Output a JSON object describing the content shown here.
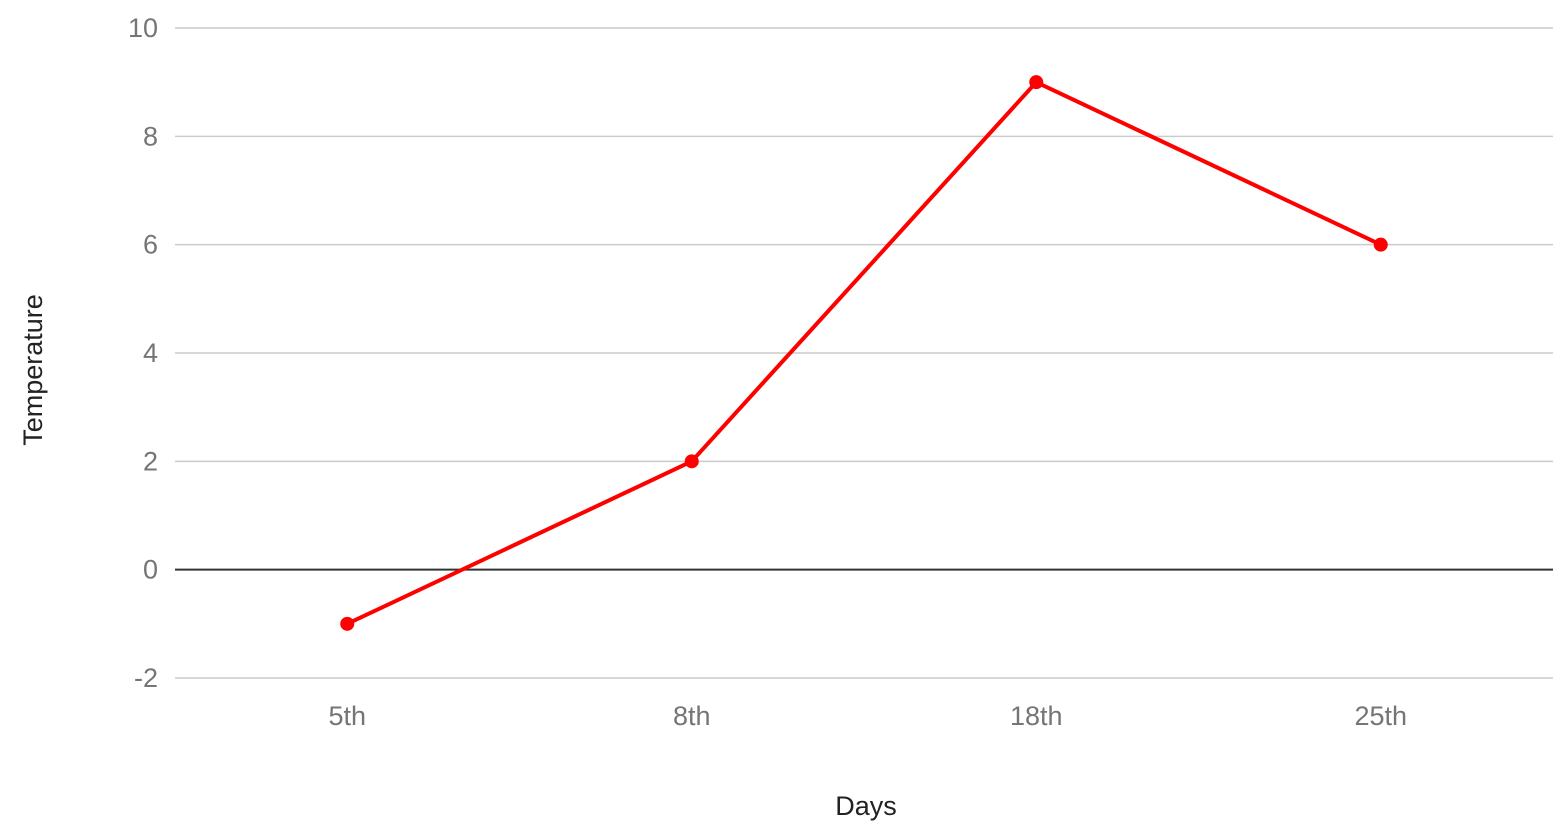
{
  "chart_data": {
    "type": "line",
    "title": "",
    "xlabel": "Days",
    "ylabel": "Temperature",
    "categories": [
      "5th",
      "8th",
      "18th",
      "25th"
    ],
    "series": [
      {
        "values": [
          -1,
          2,
          9,
          6
        ],
        "color": "#ff0000"
      }
    ],
    "ylim": [
      -2,
      10
    ],
    "yticks": [
      "-2",
      "0",
      "2",
      "4",
      "6",
      "8",
      "10"
    ],
    "grid": true,
    "legend": "none"
  }
}
